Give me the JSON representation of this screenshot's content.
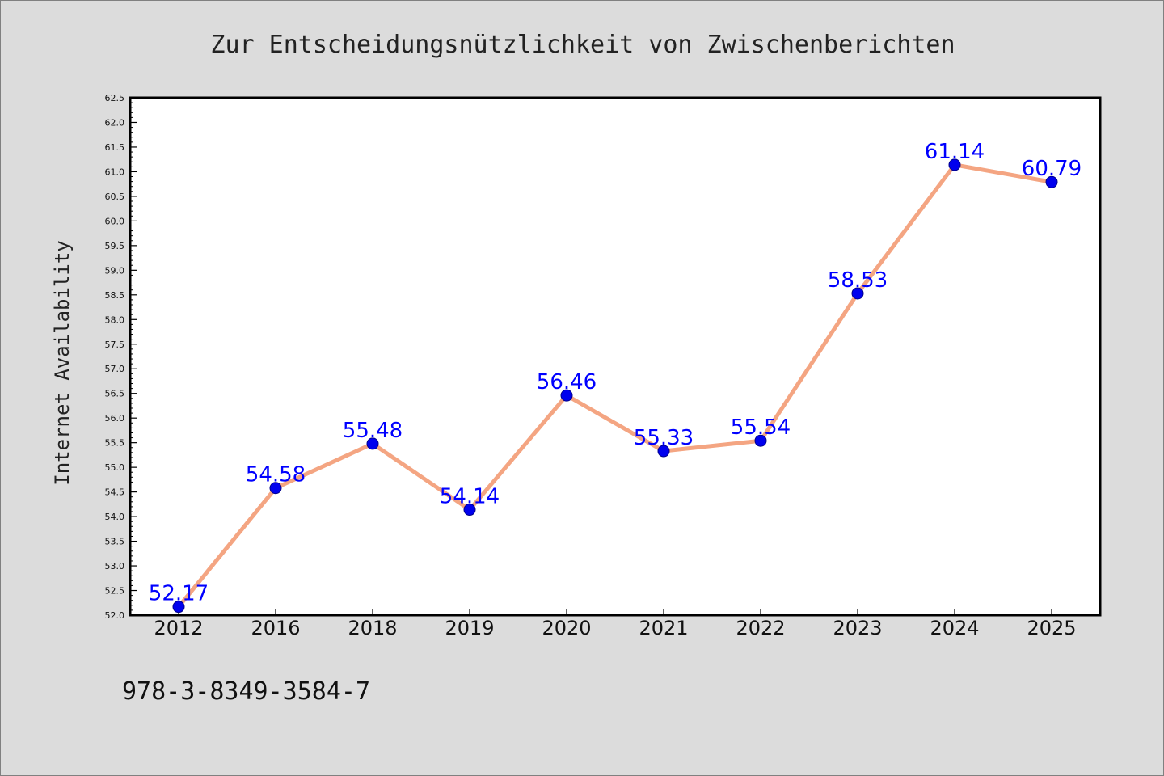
{
  "colors": {
    "background": "#dcdcdc",
    "plot_area": "#ffffff",
    "line": "#f4a582",
    "marker": "#0000ee",
    "marker_edge": "#00008b",
    "data_label": "#0000ff"
  },
  "footer": {
    "code": "978-3-8349-3584-7"
  },
  "chart_data": {
    "type": "line",
    "title": "Zur Entscheidungsnützlichkeit von Zwischenberichten",
    "xlabel": "",
    "ylabel": "Internet Availability",
    "categories": [
      "2012",
      "2016",
      "2018",
      "2019",
      "2020",
      "2021",
      "2022",
      "2023",
      "2024",
      "2025"
    ],
    "values": [
      52.17,
      54.58,
      55.48,
      54.14,
      56.46,
      55.33,
      55.54,
      58.53,
      61.14,
      60.79
    ],
    "data_labels": [
      "52.17",
      "54.58",
      "55.48",
      "54.14",
      "56.46",
      "55.33",
      "55.54",
      "58.53",
      "61.14",
      "60.79"
    ],
    "ylim": [
      52.0,
      62.5
    ],
    "yticks": [
      "52.0",
      "52.5",
      "53.0",
      "53.5",
      "54.0",
      "54.5",
      "55.0",
      "55.5",
      "56.0",
      "56.5",
      "57.0",
      "57.5",
      "58.0",
      "58.5",
      "59.0",
      "59.5",
      "60.0",
      "60.5",
      "61.0",
      "61.5",
      "62.0",
      "62.5"
    ],
    "grid": false,
    "legend": "none"
  }
}
